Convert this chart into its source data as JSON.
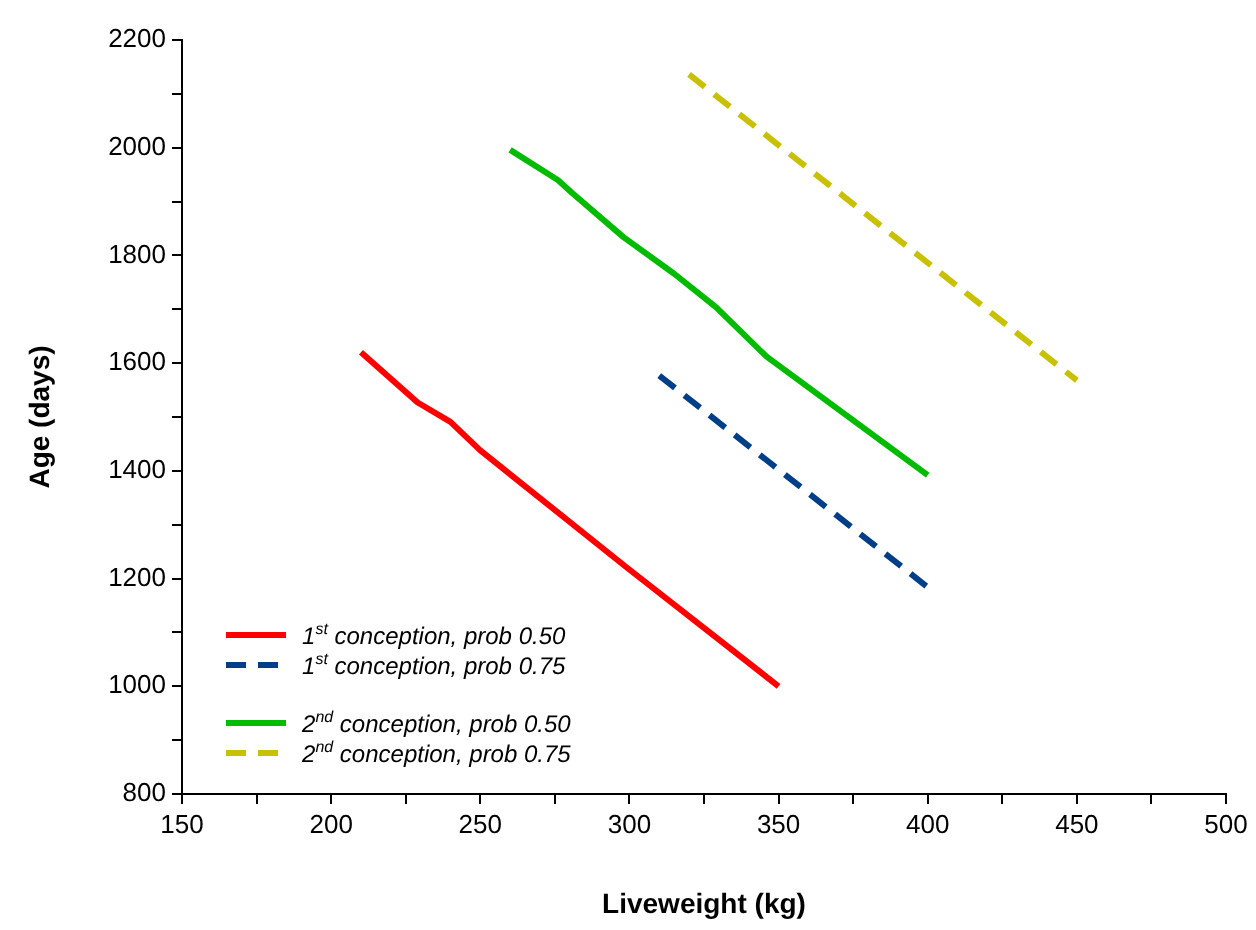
{
  "chart_data": {
    "type": "line",
    "xlabel": "Liveweight (kg)",
    "ylabel": "Age (days)",
    "xlim": [
      150,
      500
    ],
    "xticks": [
      150,
      {
        "value": 175,
        "label": null
      },
      200,
      {
        "value": 225,
        "label": null
      },
      250,
      {
        "value": 275,
        "label": null
      },
      300,
      {
        "value": 325,
        "label": null
      },
      350,
      {
        "value": 375,
        "label": null
      },
      400,
      {
        "value": 425,
        "label": null
      },
      450,
      {
        "value": 475,
        "label": null
      },
      500
    ],
    "ylim": [
      800,
      2200
    ],
    "yticks": [
      800,
      {
        "value": 900,
        "label": null
      },
      1000,
      {
        "value": 1100,
        "label": null
      },
      1200,
      {
        "value": 1300,
        "label": null
      },
      1400,
      {
        "value": 1500,
        "label": null
      },
      1600,
      {
        "value": 1700,
        "label": null
      },
      1800,
      {
        "value": 1900,
        "label": null
      },
      2000,
      {
        "value": 2100,
        "label": null
      },
      2200
    ],
    "grid": false,
    "legend": "bottom left",
    "marker": "none",
    "series": [
      {
        "name": "1$^{st}$ conception, prob 0.50",
        "color": "#ff0000",
        "line_style": "solid",
        "x": [
          210,
          229,
          240,
          250,
          299,
          350
        ],
        "values": [
          1620,
          1527,
          1491,
          1438,
          1221,
          1000
        ]
      },
      {
        "name": "1$^{st}$ conception, prob 0.75",
        "color": "#003f87",
        "line_style": "dashed",
        "x": [
          310,
          400
        ],
        "values": [
          1577,
          1184
        ]
      },
      {
        "name": "2$^{nd}$ conception, prob 0.50",
        "color": "#00bb00",
        "line_style": "solid",
        "x": [
          260,
          276,
          281,
          298,
          315,
          329,
          346,
          400
        ],
        "values": [
          1996,
          1940,
          1915,
          1834,
          1766,
          1704,
          1612,
          1392
        ]
      },
      {
        "name": "2$^{nd}$ conception, prob 0.75",
        "color": "#c8c000",
        "line_style": "dashed",
        "x": [
          320,
          450
        ],
        "values": [
          2136,
          1568
        ]
      }
    ]
  }
}
